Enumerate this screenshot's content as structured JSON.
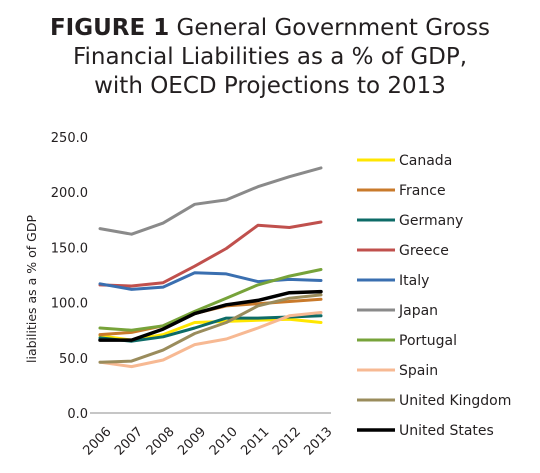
{
  "title": {
    "figure_label": "FIGURE 1",
    "line1_rest": "General Government Gross",
    "line2": "Financial Liabilities as a % of GDP,",
    "line3": "with OECD Projections to 2013"
  },
  "chart_data": {
    "type": "line",
    "title": "General Government Gross Financial Liabilities as a % of GDP, with OECD Projections to 2013",
    "xlabel": "",
    "ylabel": "liabilities as a % of GDP",
    "x": [
      "2006",
      "2007",
      "2008",
      "2009",
      "2010",
      "2011",
      "2012",
      "2013"
    ],
    "ylim": [
      0,
      250
    ],
    "yticks": [
      "0.0",
      "50.0",
      "100.0",
      "150.0",
      "200.0",
      "250.0"
    ],
    "grid": false,
    "legend_position": "right",
    "series": [
      {
        "name": "Canada",
        "color": "#ffe600",
        "values": [
          70,
          66,
          71,
          82,
          83,
          84,
          85,
          82
        ]
      },
      {
        "name": "France",
        "color": "#c97a2b",
        "values": [
          71,
          73,
          79,
          90,
          97,
          99,
          101,
          103
        ]
      },
      {
        "name": "Germany",
        "color": "#0d6b67",
        "values": [
          68,
          65,
          69,
          77,
          86,
          86,
          87,
          88
        ]
      },
      {
        "name": "Greece",
        "color": "#c0504d",
        "values": [
          116,
          115,
          118,
          133,
          149,
          170,
          168,
          173
        ]
      },
      {
        "name": "Italy",
        "color": "#3a6fb0",
        "values": [
          117,
          112,
          114,
          127,
          126,
          119,
          121,
          120
        ]
      },
      {
        "name": "Japan",
        "color": "#8a8a8a",
        "values": [
          167,
          162,
          172,
          189,
          193,
          205,
          214,
          222
        ]
      },
      {
        "name": "Portugal",
        "color": "#77a33a",
        "values": [
          77,
          75,
          79,
          92,
          104,
          116,
          124,
          130
        ]
      },
      {
        "name": "Spain",
        "color": "#f7b993",
        "values": [
          46,
          42,
          48,
          62,
          67,
          77,
          88,
          91
        ]
      },
      {
        "name": "United Kingdom",
        "color": "#9a8c5c",
        "values": [
          46,
          47,
          57,
          72,
          82,
          97,
          104,
          107
        ]
      },
      {
        "name": "United States",
        "color": "#000000",
        "values": [
          66,
          66,
          76,
          90,
          98,
          102,
          109,
          110
        ]
      }
    ]
  }
}
